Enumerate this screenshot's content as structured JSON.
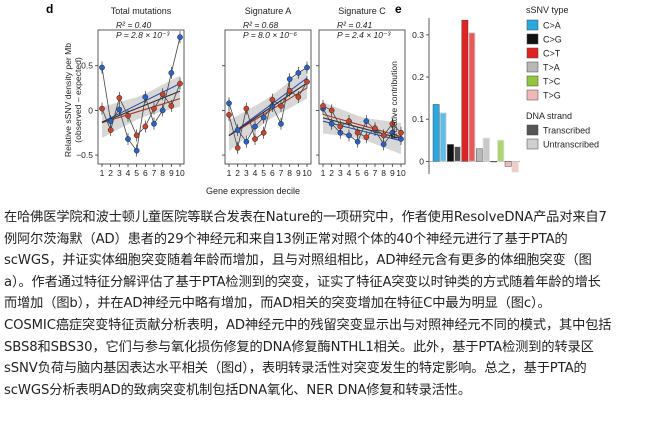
{
  "figure": {
    "panel_d": {
      "letter": "d",
      "ylabel_line1": "Relative sSNV density per Mb",
      "ylabel_line2": "(observed – expected)",
      "xlabel": "Gene expression decile",
      "ytick_labels": [
        "0.5",
        "0",
        "−0.5"
      ],
      "xtick_labels": [
        "1",
        "2",
        "3",
        "4",
        "5",
        "6",
        "7",
        "8",
        "9",
        "10"
      ],
      "subpanels": [
        {
          "title": "Total mutations",
          "r2": "R² = 0.40",
          "p": "P = 2.8 × 10⁻³"
        },
        {
          "title": "Signature A",
          "r2": "R² = 0.68",
          "p": "P = 8.0 × 10⁻⁶"
        },
        {
          "title": "Signature C",
          "r2": "R² = 0.41",
          "p": "P = 2.4 × 10⁻³"
        }
      ]
    },
    "panel_e": {
      "letter": "e",
      "ylabel": "Relative contribution",
      "ytick_labels": [
        "0.3",
        "0.2",
        "0.1",
        "0"
      ],
      "legend_title": "sSNV type",
      "legend_items": [
        {
          "label": "C>A",
          "color": "#2aa8e0"
        },
        {
          "label": "C>G",
          "color": "#111111"
        },
        {
          "label": "C>T",
          "color": "#e02424"
        },
        {
          "label": "T>A",
          "color": "#b8b8b8"
        },
        {
          "label": "T>C",
          "color": "#94c53f"
        },
        {
          "label": "T>G",
          "color": "#f0b9b9"
        }
      ],
      "strand_title": "DNA strand",
      "strand_items": [
        {
          "label": "Transcribed",
          "color": "#555555"
        },
        {
          "label": "Untranscribed",
          "color": "#d0d0d0"
        }
      ]
    }
  },
  "chart_data": [
    {
      "type": "line",
      "title": "Total mutations",
      "xlabel": "Gene expression decile",
      "ylabel": "Relative sSNV density per Mb (observed – expected)",
      "x": [
        1,
        2,
        3,
        4,
        5,
        6,
        7,
        8,
        9,
        10
      ],
      "ylim": [
        -0.6,
        0.9
      ],
      "series": [
        {
          "values": [
            0.48,
            -0.12,
            0.01,
            -0.32,
            -0.45,
            0.15,
            -0.15,
            0.0,
            0.42,
            0.82
          ]
        },
        {
          "values": [
            0.02,
            -0.22,
            0.14,
            -0.06,
            -0.28,
            -0.18,
            0.02,
            0.18,
            0.05,
            0.3
          ]
        }
      ]
    },
    {
      "type": "line",
      "title": "Signature A",
      "xlabel": "Gene expression decile",
      "x": [
        1,
        2,
        3,
        4,
        5,
        6,
        7,
        8,
        9,
        10
      ],
      "ylim": [
        -0.6,
        0.9
      ],
      "series": [
        {
          "values": [
            0.08,
            -0.22,
            -0.35,
            -0.18,
            -0.08,
            0.05,
            -0.15,
            0.35,
            0.42,
            0.48
          ]
        },
        {
          "values": [
            -0.05,
            -0.42,
            0.02,
            -0.32,
            -0.25,
            0.12,
            0.05,
            0.22,
            0.15,
            0.32
          ]
        }
      ]
    },
    {
      "type": "line",
      "title": "Signature C",
      "xlabel": "Gene expression decile",
      "x": [
        1,
        2,
        3,
        4,
        5,
        6,
        7,
        8,
        9,
        10
      ],
      "ylim": [
        -0.6,
        0.9
      ],
      "series": [
        {
          "values": [
            0.02,
            -0.15,
            -0.25,
            -0.28,
            -0.35,
            -0.12,
            -0.22,
            -0.38,
            -0.25,
            -0.32
          ]
        },
        {
          "values": [
            0.05,
            0.0,
            -0.18,
            -0.12,
            -0.25,
            -0.3,
            -0.2,
            -0.28,
            -0.15,
            -0.25
          ]
        }
      ]
    },
    {
      "type": "bar",
      "ylabel": "Relative contribution",
      "ylim": [
        -0.03,
        0.34
      ],
      "categories": [
        "C>A",
        "C>A",
        "C>G",
        "C>G",
        "C>T",
        "C>T",
        "T>A",
        "T>A",
        "T>C",
        "T>C",
        "T>G",
        "T>G"
      ],
      "strand": [
        "Transcribed",
        "Untranscribed",
        "Transcribed",
        "Untranscribed",
        "Transcribed",
        "Untranscribed",
        "Transcribed",
        "Untranscribed",
        "Transcribed",
        "Untranscribed",
        "Transcribed",
        "Untranscribed"
      ],
      "values": [
        0.135,
        0.115,
        0.04,
        0.035,
        0.335,
        0.305,
        0.03,
        0.055,
        0.0,
        0.05,
        -0.012,
        -0.025
      ]
    }
  ],
  "caption": {
    "lines": [
      "在哈佛医学院和波士顿儿童医院等联合发表在Nature的一项研究中，作者使用ResolveDNA产品对来自7",
      "例阿尔茨海默（AD）患者的29个神经元和来自13例正常对照个体的40个神经元进行了基于PTA的",
      "scWGS，并证实体细胞突变随着年龄而增加，且与对照组相比，AD神经元含有更多的体细胞突变（图",
      "a）。作者通过特征分解评估了基于PTA检测到的突变，证实了特征A突变以时钟类的方式随着年龄的增长",
      "而增加（图b），并在AD神经元中略有增加，而AD相关的突变增加在特征C中最为明显（图c）。",
      "COSMIC癌症突变特征贡献分析表明，AD神经元中的残留突变显示出与对照神经元不同的模式，其中包括",
      "SBS8和SBS30，它们与参与氧化损伤修复的DNA修复酶NTHL1相关。此外，基于PTA检测到的转录区",
      "sSNV负荷与脑内基因表达水平相关（图d），表明转录活性对突变发生的特定影响。总之，基于PTA的",
      "scWGS分析表明AD的致病突变机制包括DNA氧化、NER DNA修复和转录活性。"
    ]
  },
  "colors": {
    "blue_points": "#2a63c8",
    "red_points": "#c8442c",
    "fit_blue": "#2a4fb0",
    "fit_red": "#b0321e",
    "band": "#c6c6c6"
  }
}
